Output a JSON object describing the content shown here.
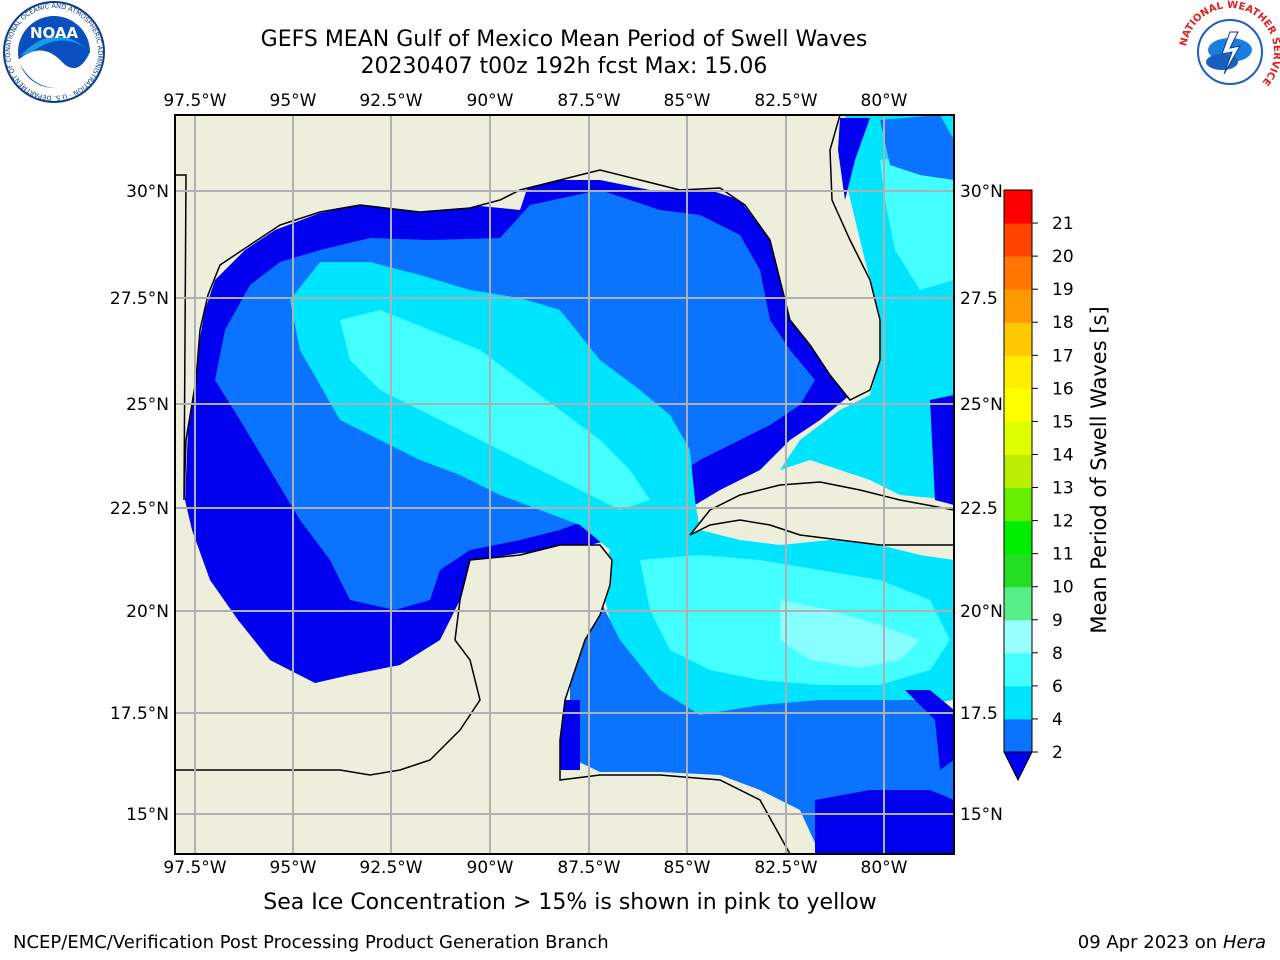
{
  "title": {
    "line1": "GEFS MEAN Gulf of Mexico Mean Period of Swell Waves",
    "line2": "20230407 t00z 192h fcst   Max: 15.06"
  },
  "map": {
    "lon_labels": [
      "97.5°W",
      "95°W",
      "92.5°W",
      "90°W",
      "87.5°W",
      "85°W",
      "82.5°W",
      "80°W"
    ],
    "lat_labels_left": [
      "30°N",
      "27.5°N",
      "25°N",
      "22.5°N",
      "20°N",
      "17.5°N",
      "15°N"
    ],
    "lat_labels_right": [
      "30°N",
      "27.5",
      "25°N",
      "22.5",
      "20°N",
      "17.5",
      "15°N"
    ],
    "land_color": "#eeeedd",
    "ocean_colors": {
      "level_2_4": "#0000ee",
      "level_4_5": "#0a73ff",
      "level_5_6": "#00e5ff",
      "level_6_7": "#44ffff",
      "level_7_8": "#88ffff",
      "level_13_15": "#e6ff00"
    }
  },
  "colorbar": {
    "title": "Mean Period of Swell Waves [s]",
    "levels": [
      "2",
      "4",
      "6",
      "8",
      "9",
      "10",
      "11",
      "12",
      "13",
      "14",
      "15",
      "16",
      "17",
      "18",
      "19",
      "20",
      "21"
    ],
    "colors": [
      "#0a73ff",
      "#00e5ff",
      "#44ffff",
      "#99ffff",
      "#55ee88",
      "#22dd22",
      "#00ee00",
      "#66ee00",
      "#bbee00",
      "#ddff00",
      "#ffff00",
      "#ffee00",
      "#ffc800",
      "#ff9900",
      "#ff7700",
      "#ff4400",
      "#ff0000"
    ],
    "extend_color": "#0000ee"
  },
  "caption": "Sea Ice Concentration > 15% is shown in pink to yellow",
  "footer": {
    "left": "NCEP/EMC/Verification Post Processing Product Generation Branch",
    "right_date": "09 Apr 2023 on",
    "right_host": "Hera"
  },
  "logos": {
    "noaa_text": "NOAA",
    "noaa_ring": "NATIONAL OCEANIC AND ATMOSPHERIC ADMINISTRATION · U.S. DEPARTMENT OF COMMERCE",
    "nws_ring": "NATIONAL WEATHER SERVICE"
  }
}
